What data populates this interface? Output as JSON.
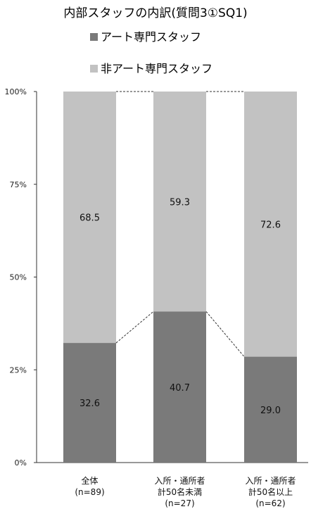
{
  "chart_data": {
    "type": "bar",
    "stacked": "100%",
    "title": "内部スタッフの内訳(質問3①SQ1)",
    "categories": [
      [
        "全体",
        "(n=89)"
      ],
      [
        "入所・通所者",
        "計50名未満",
        "(n=27)"
      ],
      [
        "入所・通所者",
        "計50名以上",
        "(n=62)"
      ]
    ],
    "series": [
      {
        "name": "アート専門スタッフ",
        "color": "#7a7a7a",
        "values": [
          32.6,
          40.7,
          29.0
        ],
        "labels": [
          "32.6",
          "40.7",
          "29.0"
        ]
      },
      {
        "name": "非アート専門スタッフ",
        "color": "#c2c2c2",
        "values": [
          68.5,
          59.3,
          72.6
        ],
        "labels": [
          "68.5",
          "59.3",
          "72.6"
        ]
      }
    ],
    "yticks": [
      "0%",
      "25%",
      "50%",
      "75%",
      "100%"
    ],
    "ylim": [
      0,
      100
    ],
    "legend": "top-left",
    "connector_lines": true
  }
}
